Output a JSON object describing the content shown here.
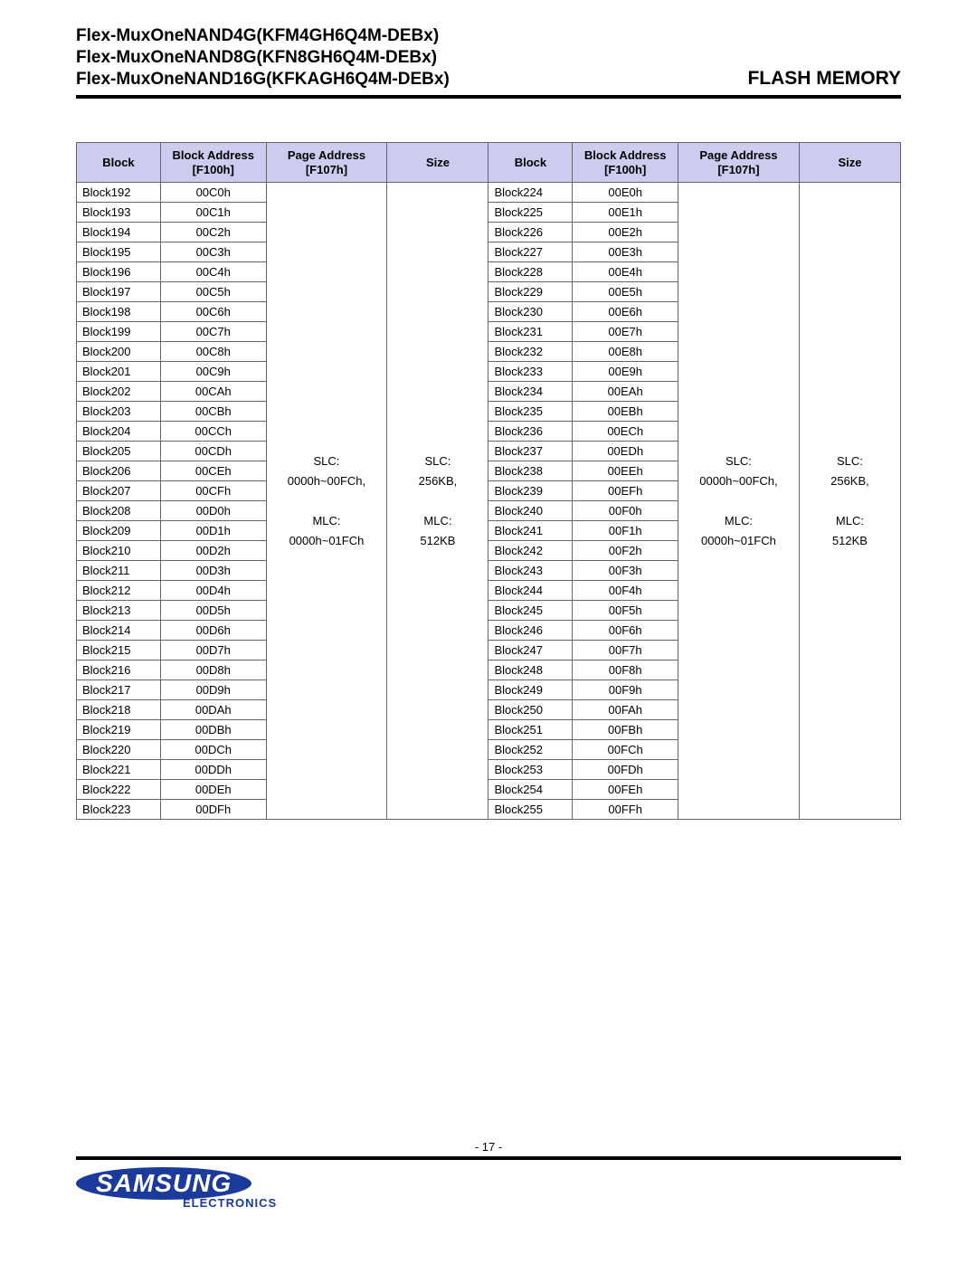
{
  "header": {
    "lines": [
      "Flex-MuxOneNAND4G(KFM4GH6Q4M-DEBx)",
      "Flex-MuxOneNAND8G(KFN8GH6Q4M-DEBx)",
      "Flex-MuxOneNAND16G(KFKAGH6Q4M-DEBx)"
    ],
    "right": "FLASH MEMORY"
  },
  "columns": [
    "Block",
    "Block Address\n[F100h]",
    "Page Address\n[F107h]",
    "Size",
    "Block",
    "Block Address\n[F100h]",
    "Page Address\n[F107h]",
    "Size"
  ],
  "page_addr": "SLC:\n0000h~00FCh,\n\nMLC:\n0000h~01FCh",
  "size_col": "SLC:\n256KB,\n\nMLC:\n512KB",
  "left_start": 192,
  "left_addr_base": "00C0h",
  "right_start": 224,
  "right_addr_base": "00E0h",
  "left_rows": [
    {
      "b": "Block192",
      "a": "00C0h"
    },
    {
      "b": "Block193",
      "a": "00C1h"
    },
    {
      "b": "Block194",
      "a": "00C2h"
    },
    {
      "b": "Block195",
      "a": "00C3h"
    },
    {
      "b": "Block196",
      "a": "00C4h"
    },
    {
      "b": "Block197",
      "a": "00C5h"
    },
    {
      "b": "Block198",
      "a": "00C6h"
    },
    {
      "b": "Block199",
      "a": "00C7h"
    },
    {
      "b": "Block200",
      "a": "00C8h"
    },
    {
      "b": "Block201",
      "a": "00C9h"
    },
    {
      "b": "Block202",
      "a": "00CAh"
    },
    {
      "b": "Block203",
      "a": "00CBh"
    },
    {
      "b": "Block204",
      "a": "00CCh"
    },
    {
      "b": "Block205",
      "a": "00CDh"
    },
    {
      "b": "Block206",
      "a": "00CEh"
    },
    {
      "b": "Block207",
      "a": "00CFh"
    },
    {
      "b": "Block208",
      "a": "00D0h"
    },
    {
      "b": "Block209",
      "a": "00D1h"
    },
    {
      "b": "Block210",
      "a": "00D2h"
    },
    {
      "b": "Block211",
      "a": "00D3h"
    },
    {
      "b": "Block212",
      "a": "00D4h"
    },
    {
      "b": "Block213",
      "a": "00D5h"
    },
    {
      "b": "Block214",
      "a": "00D6h"
    },
    {
      "b": "Block215",
      "a": "00D7h"
    },
    {
      "b": "Block216",
      "a": "00D8h"
    },
    {
      "b": "Block217",
      "a": "00D9h"
    },
    {
      "b": "Block218",
      "a": "00DAh"
    },
    {
      "b": "Block219",
      "a": "00DBh"
    },
    {
      "b": "Block220",
      "a": "00DCh"
    },
    {
      "b": "Block221",
      "a": "00DDh"
    },
    {
      "b": "Block222",
      "a": "00DEh"
    },
    {
      "b": "Block223",
      "a": "00DFh"
    }
  ],
  "right_rows": [
    {
      "b": "Block224",
      "a": "00E0h"
    },
    {
      "b": "Block225",
      "a": "00E1h"
    },
    {
      "b": "Block226",
      "a": "00E2h"
    },
    {
      "b": "Block227",
      "a": "00E3h"
    },
    {
      "b": "Block228",
      "a": "00E4h"
    },
    {
      "b": "Block229",
      "a": "00E5h"
    },
    {
      "b": "Block230",
      "a": "00E6h"
    },
    {
      "b": "Block231",
      "a": "00E7h"
    },
    {
      "b": "Block232",
      "a": "00E8h"
    },
    {
      "b": "Block233",
      "a": "00E9h"
    },
    {
      "b": "Block234",
      "a": "00EAh"
    },
    {
      "b": "Block235",
      "a": "00EBh"
    },
    {
      "b": "Block236",
      "a": "00ECh"
    },
    {
      "b": "Block237",
      "a": "00EDh"
    },
    {
      "b": "Block238",
      "a": "00EEh"
    },
    {
      "b": "Block239",
      "a": "00EFh"
    },
    {
      "b": "Block240",
      "a": "00F0h"
    },
    {
      "b": "Block241",
      "a": "00F1h"
    },
    {
      "b": "Block242",
      "a": "00F2h"
    },
    {
      "b": "Block243",
      "a": "00F3h"
    },
    {
      "b": "Block244",
      "a": "00F4h"
    },
    {
      "b": "Block245",
      "a": "00F5h"
    },
    {
      "b": "Block246",
      "a": "00F6h"
    },
    {
      "b": "Block247",
      "a": "00F7h"
    },
    {
      "b": "Block248",
      "a": "00F8h"
    },
    {
      "b": "Block249",
      "a": "00F9h"
    },
    {
      "b": "Block250",
      "a": "00FAh"
    },
    {
      "b": "Block251",
      "a": "00FBh"
    },
    {
      "b": "Block252",
      "a": "00FCh"
    },
    {
      "b": "Block253",
      "a": "00FDh"
    },
    {
      "b": "Block254",
      "a": "00FEh"
    },
    {
      "b": "Block255",
      "a": "00FFh"
    }
  ],
  "footer": {
    "page": "- 17 -",
    "logo_word": "SAMSUNG",
    "logo_sub": "ELECTRONICS"
  },
  "style": {
    "header_bg": "#ccccee",
    "border_color": "#666666",
    "logo_color": "#1a3a9c",
    "font_body": 13,
    "font_title": 19
  }
}
